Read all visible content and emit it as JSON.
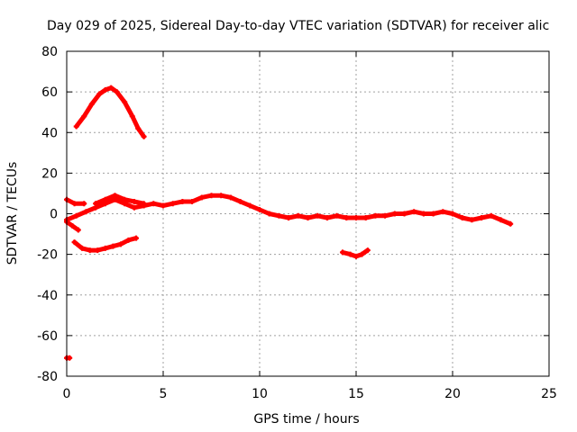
{
  "chart_data": {
    "type": "scatter",
    "title": "Day 029 of 2025, Sidereal Day-to-day VTEC variation (SDTVAR) for receiver alic",
    "xlabel": "GPS time / hours",
    "ylabel": "SDTVAR / TECUs",
    "xlim": [
      0,
      25
    ],
    "ylim": [
      -80,
      80
    ],
    "xticks": [
      0,
      5,
      10,
      15,
      20,
      25
    ],
    "yticks": [
      -80,
      -60,
      -40,
      -20,
      0,
      20,
      40,
      60,
      80
    ],
    "grid": true,
    "series": [
      {
        "name": "arc-high",
        "color": "#ff0000",
        "x": [
          0.5,
          0.9,
          1.3,
          1.7,
          2.0,
          2.3,
          2.6,
          3.0,
          3.4,
          3.7,
          4.0
        ],
        "y": [
          43,
          48,
          54,
          59,
          61,
          62,
          60,
          55,
          48,
          42,
          38
        ]
      },
      {
        "name": "arc-main",
        "color": "#ff0000",
        "x": [
          0.0,
          0.5,
          1.0,
          1.5,
          2.0,
          2.5,
          3.0,
          3.5,
          4.0,
          4.5,
          5.0,
          5.5,
          6.0,
          6.5,
          7.0,
          7.5,
          8.0,
          8.5,
          9.0,
          9.5,
          10.0,
          10.5,
          11.0,
          11.5,
          12.0,
          12.5,
          13.0,
          13.5,
          14.0,
          14.5,
          15.0,
          15.5,
          16.0,
          16.5,
          17.0,
          17.5,
          18.0,
          18.5,
          19.0,
          19.5,
          20.0,
          20.5,
          21.0,
          21.5,
          22.0,
          22.5,
          23.0
        ],
        "y": [
          -3,
          -1,
          1,
          3,
          5,
          7,
          5,
          3,
          4,
          5,
          4,
          5,
          6,
          6,
          8,
          9,
          9,
          8,
          6,
          4,
          2,
          0,
          -1,
          -2,
          -1,
          -2,
          -1,
          -2,
          -1,
          -2,
          -2,
          -2,
          -1,
          -1,
          0,
          0,
          1,
          0,
          0,
          1,
          0,
          -2,
          -3,
          -2,
          -1,
          -3,
          -5
        ]
      },
      {
        "name": "arc-top-left",
        "color": "#ff0000",
        "x": [
          0.0,
          0.4,
          0.9
        ],
        "y": [
          7,
          5,
          5
        ]
      },
      {
        "name": "arc-upper-mid",
        "color": "#ff0000",
        "x": [
          1.5,
          2.0,
          2.5,
          3.0,
          3.5,
          4.0
        ],
        "y": [
          5,
          7,
          9,
          7,
          6,
          5
        ]
      },
      {
        "name": "arc-down-left",
        "color": "#ff0000",
        "x": [
          0.0,
          0.3,
          0.6
        ],
        "y": [
          -4,
          -6,
          -8
        ]
      },
      {
        "name": "arc-low",
        "color": "#ff0000",
        "x": [
          0.4,
          0.8,
          1.2,
          1.6,
          2.0,
          2.4,
          2.8,
          3.2,
          3.6
        ],
        "y": [
          -14,
          -17,
          -18,
          -18,
          -17,
          -16,
          -15,
          -13,
          -12
        ]
      },
      {
        "name": "arc-15h",
        "color": "#ff0000",
        "x": [
          14.3,
          14.7,
          15.0,
          15.3,
          15.6
        ],
        "y": [
          -19,
          -20,
          -21,
          -20,
          -18
        ]
      },
      {
        "name": "arc-outlier",
        "color": "#ff0000",
        "x": [
          0.0,
          0.15
        ],
        "y": [
          -71,
          -71
        ]
      }
    ]
  }
}
